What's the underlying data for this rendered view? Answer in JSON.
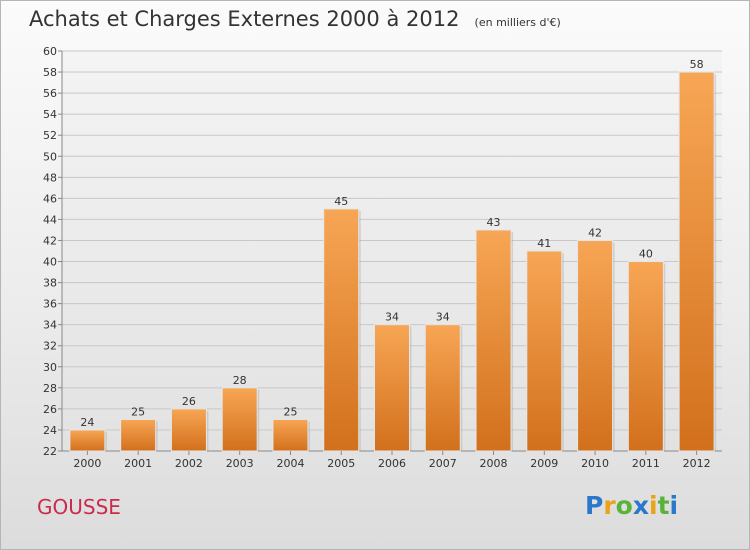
{
  "header": {
    "title": "Achats et Charges Externes 2000 à 2012",
    "subtitle": "(en milliers d'€)"
  },
  "footer": {
    "commune": "GOUSSE",
    "logo_text": "Proxiti",
    "logo_letters": [
      {
        "ch": "P",
        "color": "#2a78c9"
      },
      {
        "ch": "r",
        "color": "#e8a317"
      },
      {
        "ch": "o",
        "color": "#59b33b"
      },
      {
        "ch": "x",
        "color": "#2a78c9"
      },
      {
        "ch": "i",
        "color": "#e8a317"
      },
      {
        "ch": "t",
        "color": "#59b33b"
      },
      {
        "ch": "i",
        "color": "#2a78c9"
      }
    ]
  },
  "chart_data": {
    "type": "bar",
    "categories": [
      "2000",
      "2001",
      "2002",
      "2003",
      "2004",
      "2005",
      "2006",
      "2007",
      "2008",
      "2009",
      "2010",
      "2011",
      "2012"
    ],
    "values": [
      24,
      25,
      26,
      28,
      25,
      45,
      34,
      34,
      43,
      41,
      42,
      40,
      58
    ],
    "title": "Achats et Charges Externes 2000 à 2012",
    "subtitle": "(en milliers d'€)",
    "ylim": [
      22,
      60
    ],
    "yticks": [
      22,
      24,
      26,
      28,
      30,
      32,
      34,
      36,
      38,
      40,
      42,
      44,
      46,
      48,
      50,
      52,
      54,
      56,
      58,
      60
    ],
    "grid": true,
    "bar_color_top": "#f7a655",
    "bar_color_bottom": "#d2701c"
  }
}
